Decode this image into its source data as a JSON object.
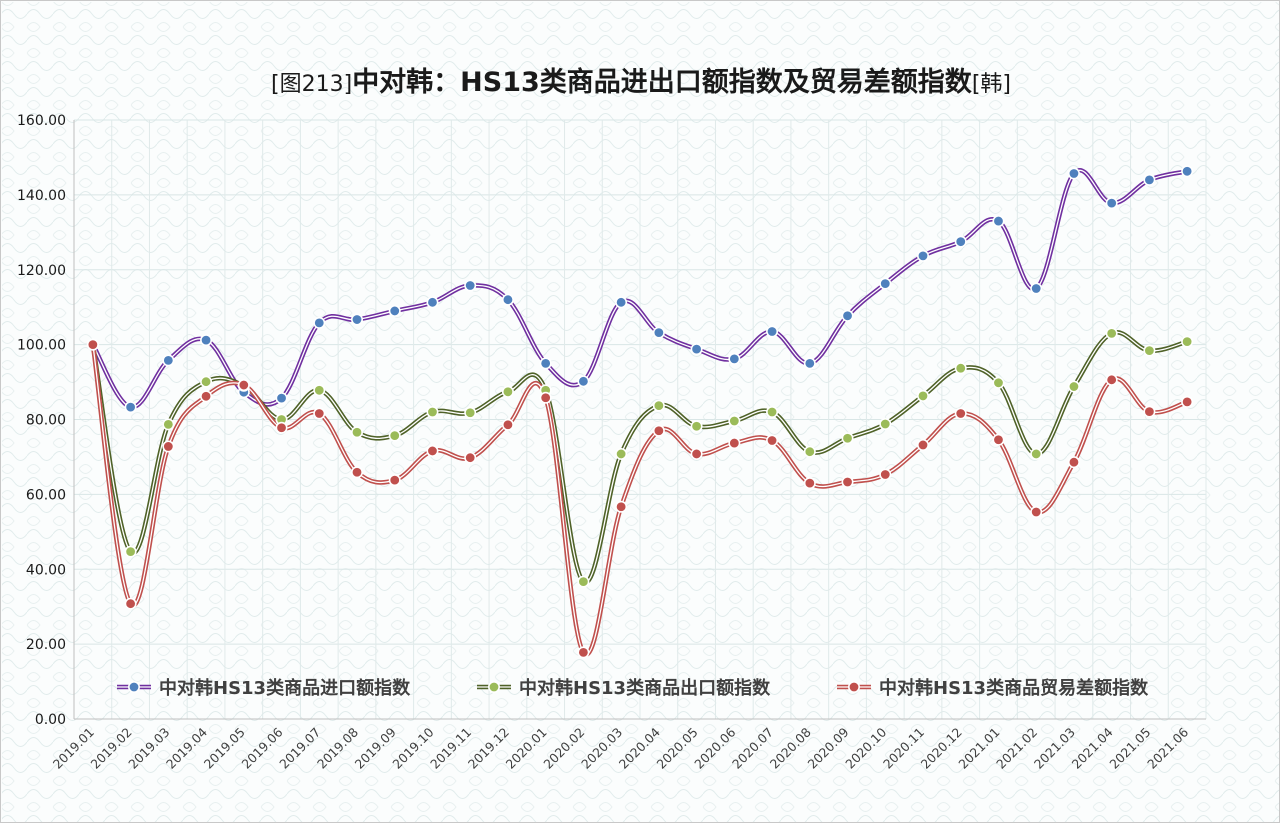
{
  "chart_data": {
    "type": "line",
    "title_prefix": "[图213]",
    "title": "中对韩：HS13类商品进出口额指数及贸易差额指数",
    "title_suffix": "[韩]",
    "xlabel": "",
    "ylabel": "",
    "ylim": [
      0,
      160
    ],
    "y_ticks": [
      "0.00",
      "20.00",
      "40.00",
      "60.00",
      "80.00",
      "100.00",
      "120.00",
      "140.00",
      "160.00"
    ],
    "grid": true,
    "legend_position": "bottom",
    "categories": [
      "2019.01",
      "2019.02",
      "2019.03",
      "2019.04",
      "2019.05",
      "2019.06",
      "2019.07",
      "2019.08",
      "2019.09",
      "2019.10",
      "2019.11",
      "2019.12",
      "2020.01",
      "2020.02",
      "2020.03",
      "2020.04",
      "2020.05",
      "2020.06",
      "2020.07",
      "2020.08",
      "2020.09",
      "2020.10",
      "2020.11",
      "2020.12",
      "2021.01",
      "2021.02",
      "2021.03",
      "2021.04",
      "2021.05",
      "2021.06"
    ],
    "series": [
      {
        "name": "中对韩HS13类商品进口额指数",
        "line_color": "#7030a0",
        "marker_color": "#4f81bd",
        "values": [
          100,
          83.3,
          95.8,
          101.2,
          87.3,
          85.7,
          105.8,
          106.7,
          109.0,
          111.3,
          115.8,
          112.0,
          95.0,
          90.2,
          111.3,
          103.2,
          98.8,
          96.2,
          103.5,
          95.0,
          107.7,
          116.3,
          123.7,
          127.5,
          133.0,
          115.0,
          145.7,
          137.8,
          144.0,
          146.3
        ]
      },
      {
        "name": "中对韩HS13类商品出口额指数",
        "line_color": "#4f6228",
        "marker_color": "#9bbb59",
        "values": [
          100,
          44.7,
          78.7,
          90.1,
          89.0,
          80.0,
          87.8,
          76.6,
          75.7,
          82.0,
          81.8,
          87.4,
          87.8,
          36.7,
          70.8,
          83.7,
          78.2,
          79.6,
          82.0,
          71.4,
          75.0,
          78.8,
          86.3,
          93.7,
          89.8,
          70.8,
          88.8,
          103.0,
          98.4,
          100.8
        ]
      },
      {
        "name": "中对韩HS13类商品贸易差额指数",
        "line_color": "#c0504d",
        "marker_color": "#c0504d",
        "values": [
          100,
          30.8,
          72.8,
          86.2,
          89.2,
          77.8,
          81.6,
          65.9,
          63.8,
          71.6,
          69.8,
          78.6,
          85.8,
          17.8,
          56.7,
          77.0,
          70.8,
          73.7,
          74.4,
          63.0,
          63.3,
          65.3,
          73.2,
          81.6,
          74.6,
          55.3,
          68.6,
          90.6,
          82.1,
          84.7
        ]
      }
    ]
  }
}
